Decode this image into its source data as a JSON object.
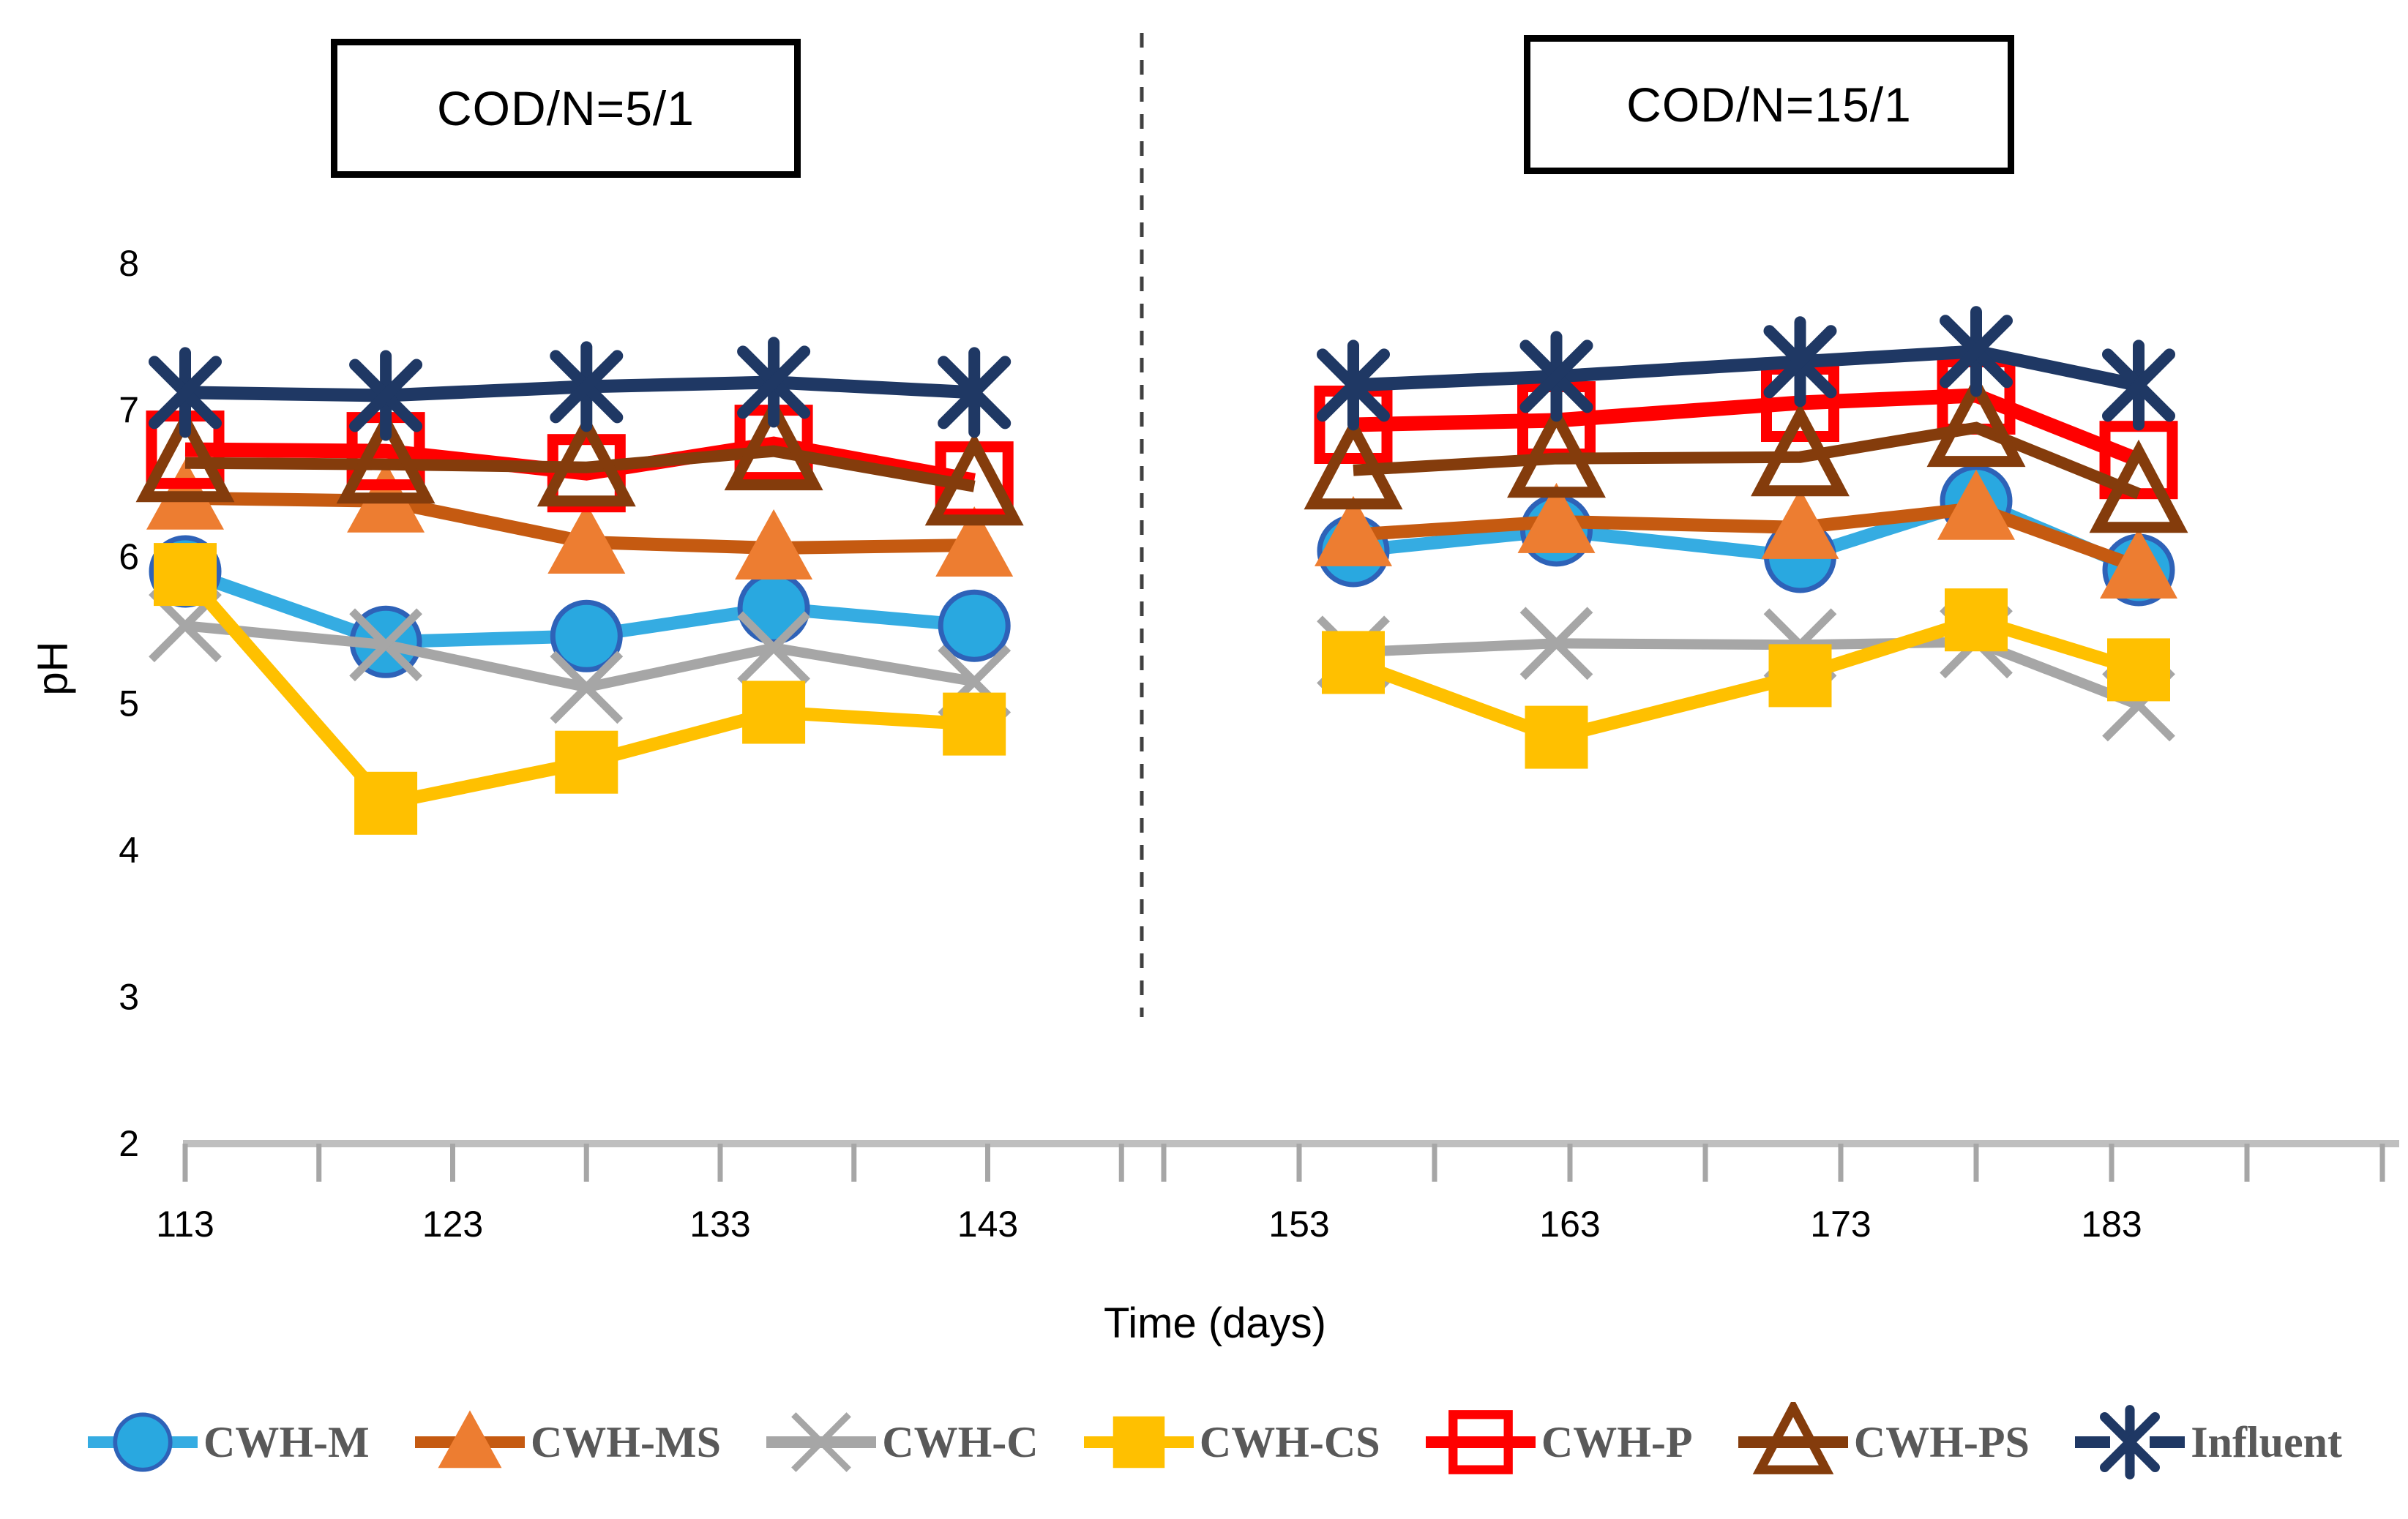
{
  "figure": {
    "background": "#ffffff",
    "panel_titles": [
      "COD/N=5/1",
      "COD/N=15/1"
    ],
    "axis_color": "#BFBFBF",
    "tick_color": "#A6A6A6",
    "divider_color": "#404040",
    "legend_text_color": "#595959"
  },
  "chart_data": {
    "type": "line",
    "title": "",
    "xlabel": "Time (days)",
    "ylabel": "pH",
    "ylim": [
      2,
      8
    ],
    "y_ticks": [
      8,
      7,
      6,
      5,
      4,
      3,
      2
    ],
    "grid": false,
    "legend_position": "bottom",
    "panels": [
      {
        "id": "left",
        "label": "COD/N=5/1",
        "x_ticks": [
          113,
          123,
          133,
          143
        ],
        "minor_ticks": [
          113,
          118,
          123,
          128,
          133,
          138,
          143,
          148
        ],
        "x": [
          113,
          120.5,
          128,
          135,
          142.5
        ]
      },
      {
        "id": "right",
        "label": "COD/N=15/1",
        "x_ticks": [
          153,
          163,
          173,
          183
        ],
        "minor_ticks": [
          148,
          153,
          158,
          163,
          168,
          173,
          178,
          183,
          188,
          193
        ],
        "x": [
          155,
          162.5,
          171.5,
          178,
          184
        ]
      }
    ],
    "series": [
      {
        "name": "CWH-M",
        "marker": "circle",
        "line_color": "#35ACE2",
        "marker_fill": "#29A8E0",
        "marker_stroke": "#2E62B8",
        "line_width": 18,
        "values": {
          "left": [
            5.9,
            5.42,
            5.46,
            5.65,
            5.53
          ],
          "right": [
            6.04,
            6.18,
            6.0,
            6.38,
            5.91
          ]
        }
      },
      {
        "name": "CWH-MS",
        "marker": "triangle",
        "line_color": "#C55A11",
        "marker_fill": "#ED7D31",
        "marker_stroke": "#C55A11",
        "line_width": 18,
        "values": {
          "left": [
            6.4,
            6.38,
            6.1,
            6.06,
            6.08
          ],
          "right": [
            6.15,
            6.24,
            6.2,
            6.33,
            5.93
          ]
        }
      },
      {
        "name": "CWH-C",
        "marker": "x",
        "line_color": "#A6A6A6",
        "marker_fill": "#A6A6A6",
        "marker_stroke": "#A6A6A6",
        "line_width": 14,
        "values": {
          "left": [
            5.53,
            5.4,
            5.11,
            5.38,
            5.15
          ],
          "right": [
            5.35,
            5.41,
            5.4,
            5.42,
            4.99
          ]
        }
      },
      {
        "name": "CWH-CS",
        "marker": "square",
        "line_color": "#FFC000",
        "marker_fill": "#FFC000",
        "marker_stroke": "#FFC000",
        "line_width": 18,
        "values": {
          "left": [
            5.88,
            4.32,
            4.6,
            4.94,
            4.86
          ],
          "right": [
            5.28,
            4.77,
            5.19,
            5.57,
            5.23
          ]
        }
      },
      {
        "name": "CWH-P",
        "marker": "square-open",
        "line_color": "#FF0000",
        "marker_fill": "#FF0000",
        "marker_stroke": "#FF0000",
        "line_width": 20,
        "values": {
          "left": [
            6.73,
            6.72,
            6.57,
            6.77,
            6.52
          ],
          "right": [
            6.9,
            6.93,
            7.05,
            7.1,
            6.66
          ]
        }
      },
      {
        "name": "CWH-PS",
        "marker": "triangle-open",
        "line_color": "#843C0C",
        "marker_fill": "#843C0C",
        "marker_stroke": "#843C0C",
        "line_width": 16,
        "values": {
          "left": [
            6.64,
            6.63,
            6.61,
            6.72,
            6.48
          ],
          "right": [
            6.59,
            6.67,
            6.68,
            6.88,
            6.43
          ]
        }
      },
      {
        "name": "Influent",
        "marker": "asterisk",
        "line_color": "#1F3864",
        "marker_fill": "#1F3864",
        "marker_stroke": "#1F3864",
        "line_width": 18,
        "values": {
          "left": [
            7.12,
            7.1,
            7.16,
            7.19,
            7.12
          ],
          "right": [
            7.17,
            7.23,
            7.33,
            7.4,
            7.17
          ]
        }
      }
    ]
  }
}
